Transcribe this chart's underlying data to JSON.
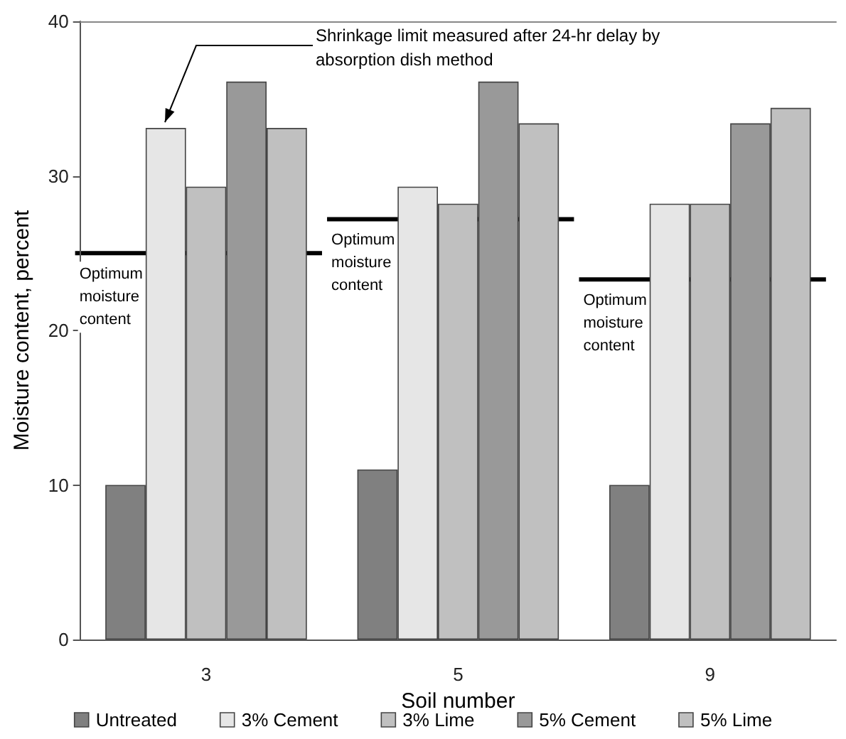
{
  "chart_data": {
    "type": "bar",
    "xlabel": "Soil number",
    "ylabel": "Moisture content, percent",
    "categories": [
      "3",
      "5",
      "9"
    ],
    "series": [
      {
        "name": "Untreated",
        "color": "#808080",
        "values": [
          10,
          11,
          10
        ]
      },
      {
        "name": "3% Cement",
        "color": "#e6e6e6",
        "values": [
          33.1,
          29.3,
          28.2
        ]
      },
      {
        "name": "3% Lime",
        "color": "#c0c0c0",
        "values": [
          29.3,
          28.2,
          28.2
        ]
      },
      {
        "name": "5% Cement",
        "color": "#999999",
        "values": [
          36.1,
          36.1,
          33.4
        ]
      },
      {
        "name": "5% Lime",
        "color": "#c0c0c0",
        "values": [
          33.1,
          33.4,
          34.4
        ]
      }
    ],
    "ylim": [
      0,
      40
    ],
    "yticks": [
      0,
      10,
      20,
      30,
      40
    ],
    "grid": false,
    "legend": "bottom",
    "ref_lines": [
      {
        "axis": "y",
        "value": 25,
        "label": "Optimum moisture content",
        "color": "#000000",
        "line_style": "solid"
      },
      {
        "axis": "y",
        "value": 27.2,
        "label": "Optimum moisture content",
        "color": "#000000",
        "line_style": "solid"
      },
      {
        "axis": "y",
        "value": 23.3,
        "label": "Optimum moisture content",
        "color": "#000000",
        "line_style": "solid"
      }
    ],
    "annotations": [
      "Shrinkage limit measured after 24-hr delay by absorption dish method"
    ]
  }
}
